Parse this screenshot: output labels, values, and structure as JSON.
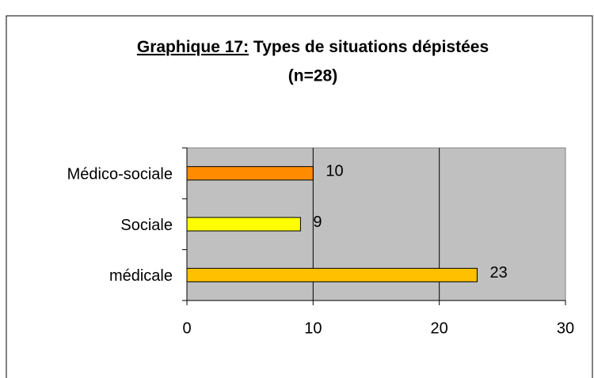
{
  "chart_data": {
    "type": "bar",
    "orientation": "horizontal",
    "figure_label": "Graphique 17:",
    "title": "Types de situations dépistées",
    "subtitle": "(n=28)",
    "categories": [
      "Médico-sociale",
      "Sociale",
      "médicale"
    ],
    "values": [
      10,
      9,
      23
    ],
    "colors": [
      "#ff8c00",
      "#ffff00",
      "#ffc000"
    ],
    "xlim": [
      0,
      30
    ],
    "xticks": [
      0,
      10,
      20,
      30
    ],
    "grid": true
  }
}
